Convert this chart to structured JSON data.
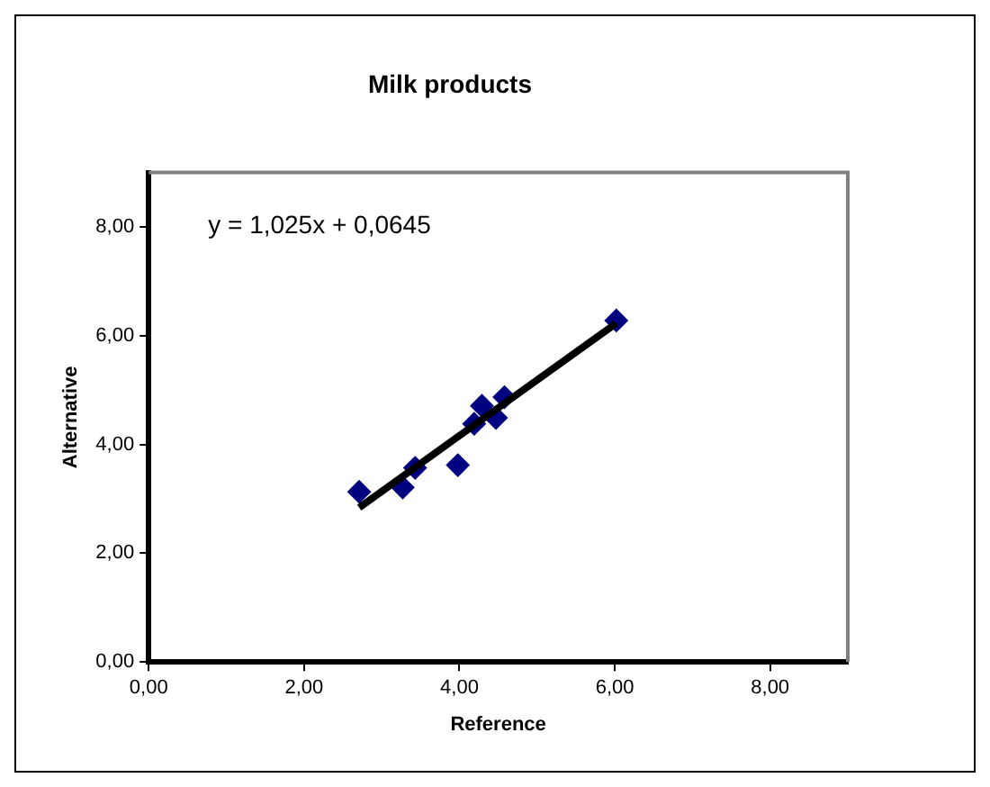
{
  "chart_data": {
    "type": "scatter",
    "title": "Milk products",
    "xlabel": "Reference",
    "ylabel": "Alternative",
    "annotations": [
      "y = 1,025x + 0,0645"
    ],
    "xlim": [
      0,
      9
    ],
    "ylim": [
      0,
      9
    ],
    "xticks": [
      {
        "value": 0,
        "label": "0,00"
      },
      {
        "value": 2,
        "label": "2,00"
      },
      {
        "value": 4,
        "label": "4,00"
      },
      {
        "value": 6,
        "label": "6,00"
      },
      {
        "value": 8,
        "label": "8,00"
      }
    ],
    "yticks": [
      {
        "value": 0,
        "label": "0,00"
      },
      {
        "value": 2,
        "label": "2,00"
      },
      {
        "value": 4,
        "label": "4,00"
      },
      {
        "value": 6,
        "label": "6,00"
      },
      {
        "value": 8,
        "label": "8,00"
      }
    ],
    "grid": false,
    "legend": false,
    "marker": "diamond",
    "series": [
      {
        "type": "scatter",
        "color": "#000080",
        "x": [
          2.71,
          3.27,
          3.43,
          3.98,
          4.19,
          4.29,
          4.47,
          4.58,
          6.02
        ],
        "values": [
          3.13,
          3.21,
          3.57,
          3.62,
          4.38,
          4.71,
          4.49,
          4.87,
          6.28
        ]
      },
      {
        "type": "line",
        "marker": "none",
        "color": "#000000",
        "x": [
          2.71,
          6.02
        ],
        "values": [
          2.84,
          6.23
        ]
      }
    ]
  }
}
